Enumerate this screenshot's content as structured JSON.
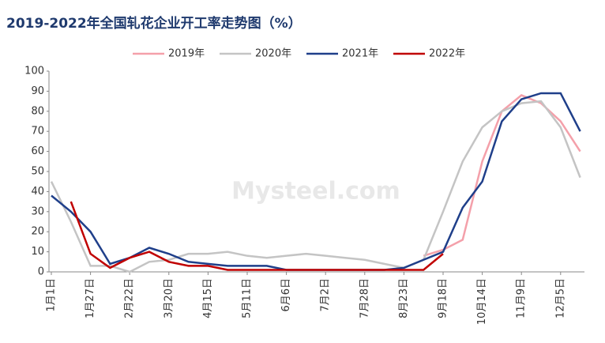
{
  "chart_data": {
    "type": "line",
    "title": "2019-2022年全国轧花企业开工率走势图（%）",
    "watermark": "Mysteel.com",
    "categories": [
      "1月1日",
      null,
      "1月27日",
      null,
      "2月22日",
      null,
      "3月20日",
      null,
      "4月15日",
      null,
      "5月11日",
      null,
      "6月6日",
      null,
      "7月2日",
      null,
      "7月28日",
      null,
      "8月23日",
      null,
      "9月18日",
      null,
      "10月14日",
      null,
      "11月9日",
      null,
      "12月5日",
      null
    ],
    "series": [
      {
        "name": "2019年",
        "color": "#f4a0aa",
        "values": [
          null,
          null,
          null,
          null,
          null,
          null,
          null,
          null,
          null,
          null,
          null,
          null,
          null,
          null,
          null,
          null,
          null,
          null,
          null,
          8,
          11,
          16,
          55,
          80,
          88,
          84,
          75,
          60
        ]
      },
      {
        "name": "2020年",
        "color": "#c4c4c4",
        "values": [
          45,
          25,
          3,
          3,
          0,
          5,
          6,
          9,
          9,
          10,
          8,
          7,
          8,
          9,
          8,
          7,
          6,
          4,
          2,
          6,
          30,
          55,
          72,
          80,
          84,
          85,
          72,
          47
        ]
      },
      {
        "name": "2021年",
        "color": "#1f3f8a",
        "values": [
          38,
          30,
          20,
          4,
          7,
          12,
          9,
          5,
          4,
          3,
          3,
          3,
          1,
          1,
          1,
          1,
          1,
          1,
          2,
          6,
          10,
          32,
          45,
          75,
          86,
          89,
          89,
          70
        ]
      },
      {
        "name": "2022年",
        "color": "#c00000",
        "values": [
          null,
          35,
          9,
          2,
          7,
          10,
          5,
          3,
          3,
          1,
          1,
          1,
          1,
          1,
          1,
          1,
          1,
          1,
          1,
          1,
          9,
          null,
          null,
          null,
          null,
          null,
          null,
          null
        ]
      }
    ],
    "ylim": [
      0,
      100
    ],
    "yticks": [
      0,
      10,
      20,
      30,
      40,
      50,
      60,
      70,
      80,
      90,
      100
    ]
  }
}
